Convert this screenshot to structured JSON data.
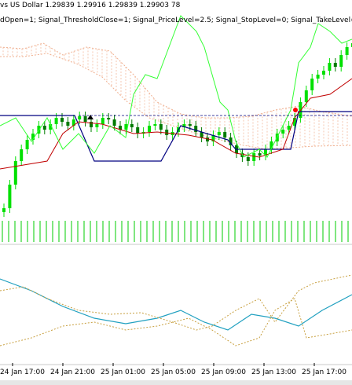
{
  "header": {
    "symbol_text": "vs US Dollar  1.29839 1.29916 1.29839 1.29903  78",
    "params_text": "dOpen=1; Signal_ThresholdClose=1; Signal_PriceLevel=2.5; Signal_StopLevel=0; Signal_TakeLevel=2.0; Si"
  },
  "time_axis": {
    "labels": [
      "24 Jan 17:00",
      "24 Jan 21:00",
      "25 Jan 01:00",
      "25 Jan 05:00",
      "25 Jan 09:00",
      "25 Jan 13:00",
      "25 Jan 17:00"
    ]
  },
  "colors": {
    "bull_candle": "#00e000",
    "bear_candle": "#007a00",
    "volume": "#00cc00",
    "kijun": "#000080",
    "tenkan": "#c00000",
    "chikou": "#33ff33",
    "cloud": "#f0b090",
    "oscillator_main": "#20a0c0",
    "oscillator_signal": "#c8a040",
    "signal_arrow": "#ff0000"
  },
  "icons": {
    "buy_arrow": "up-arrow-icon",
    "marker": "cross-marker-icon"
  }
}
